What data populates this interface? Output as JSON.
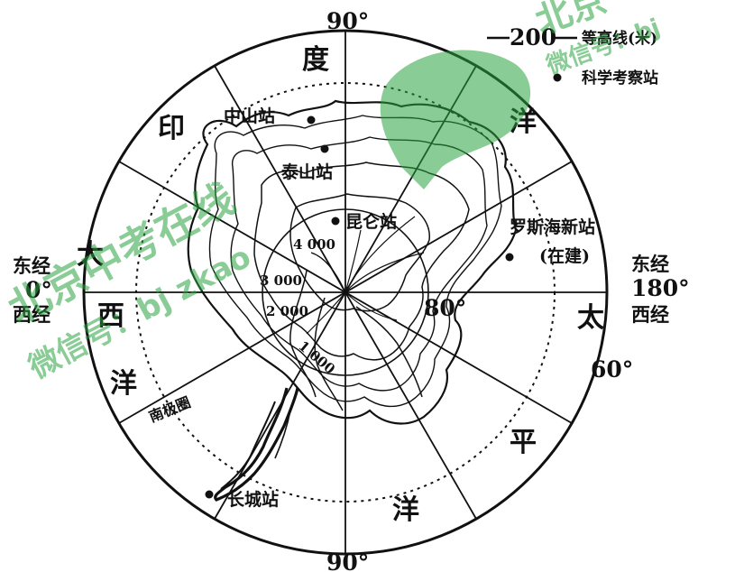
{
  "degrees": {
    "top": "90°",
    "bottom": "90°",
    "lon80": "80°",
    "lon60": "60°"
  },
  "sides": {
    "east_label": "东经",
    "east_value": "0°",
    "east_below": "西经",
    "west_label": "东经",
    "west_value": "180°",
    "west_below": "西经"
  },
  "oceans": {
    "indian": [
      "印",
      "度",
      "洋"
    ],
    "atlantic": [
      "大",
      "西",
      "洋"
    ],
    "pacific": [
      "太",
      "平",
      "洋"
    ]
  },
  "stations": [
    {
      "name": "中山站"
    },
    {
      "name": "泰山站"
    },
    {
      "name": "昆仑站"
    },
    {
      "name": "罗斯海新站"
    },
    {
      "name": "长城站"
    }
  ],
  "station_note": "(在建)",
  "contours": [
    "1 000",
    "2 000",
    "3 000",
    "4 000"
  ],
  "region_label": "南极圈",
  "legend": {
    "contour_value": "200",
    "contour_text": "等高线(米)",
    "station_text": "科学考察站"
  },
  "watermark": {
    "main": "北京中考在线",
    "sub": "微信号：bj zkao",
    "corner_top": "北京",
    "corner_sub": "微信号：bj"
  },
  "colors": {
    "ink": "#111111",
    "watermark_green": "#2aa33f"
  }
}
